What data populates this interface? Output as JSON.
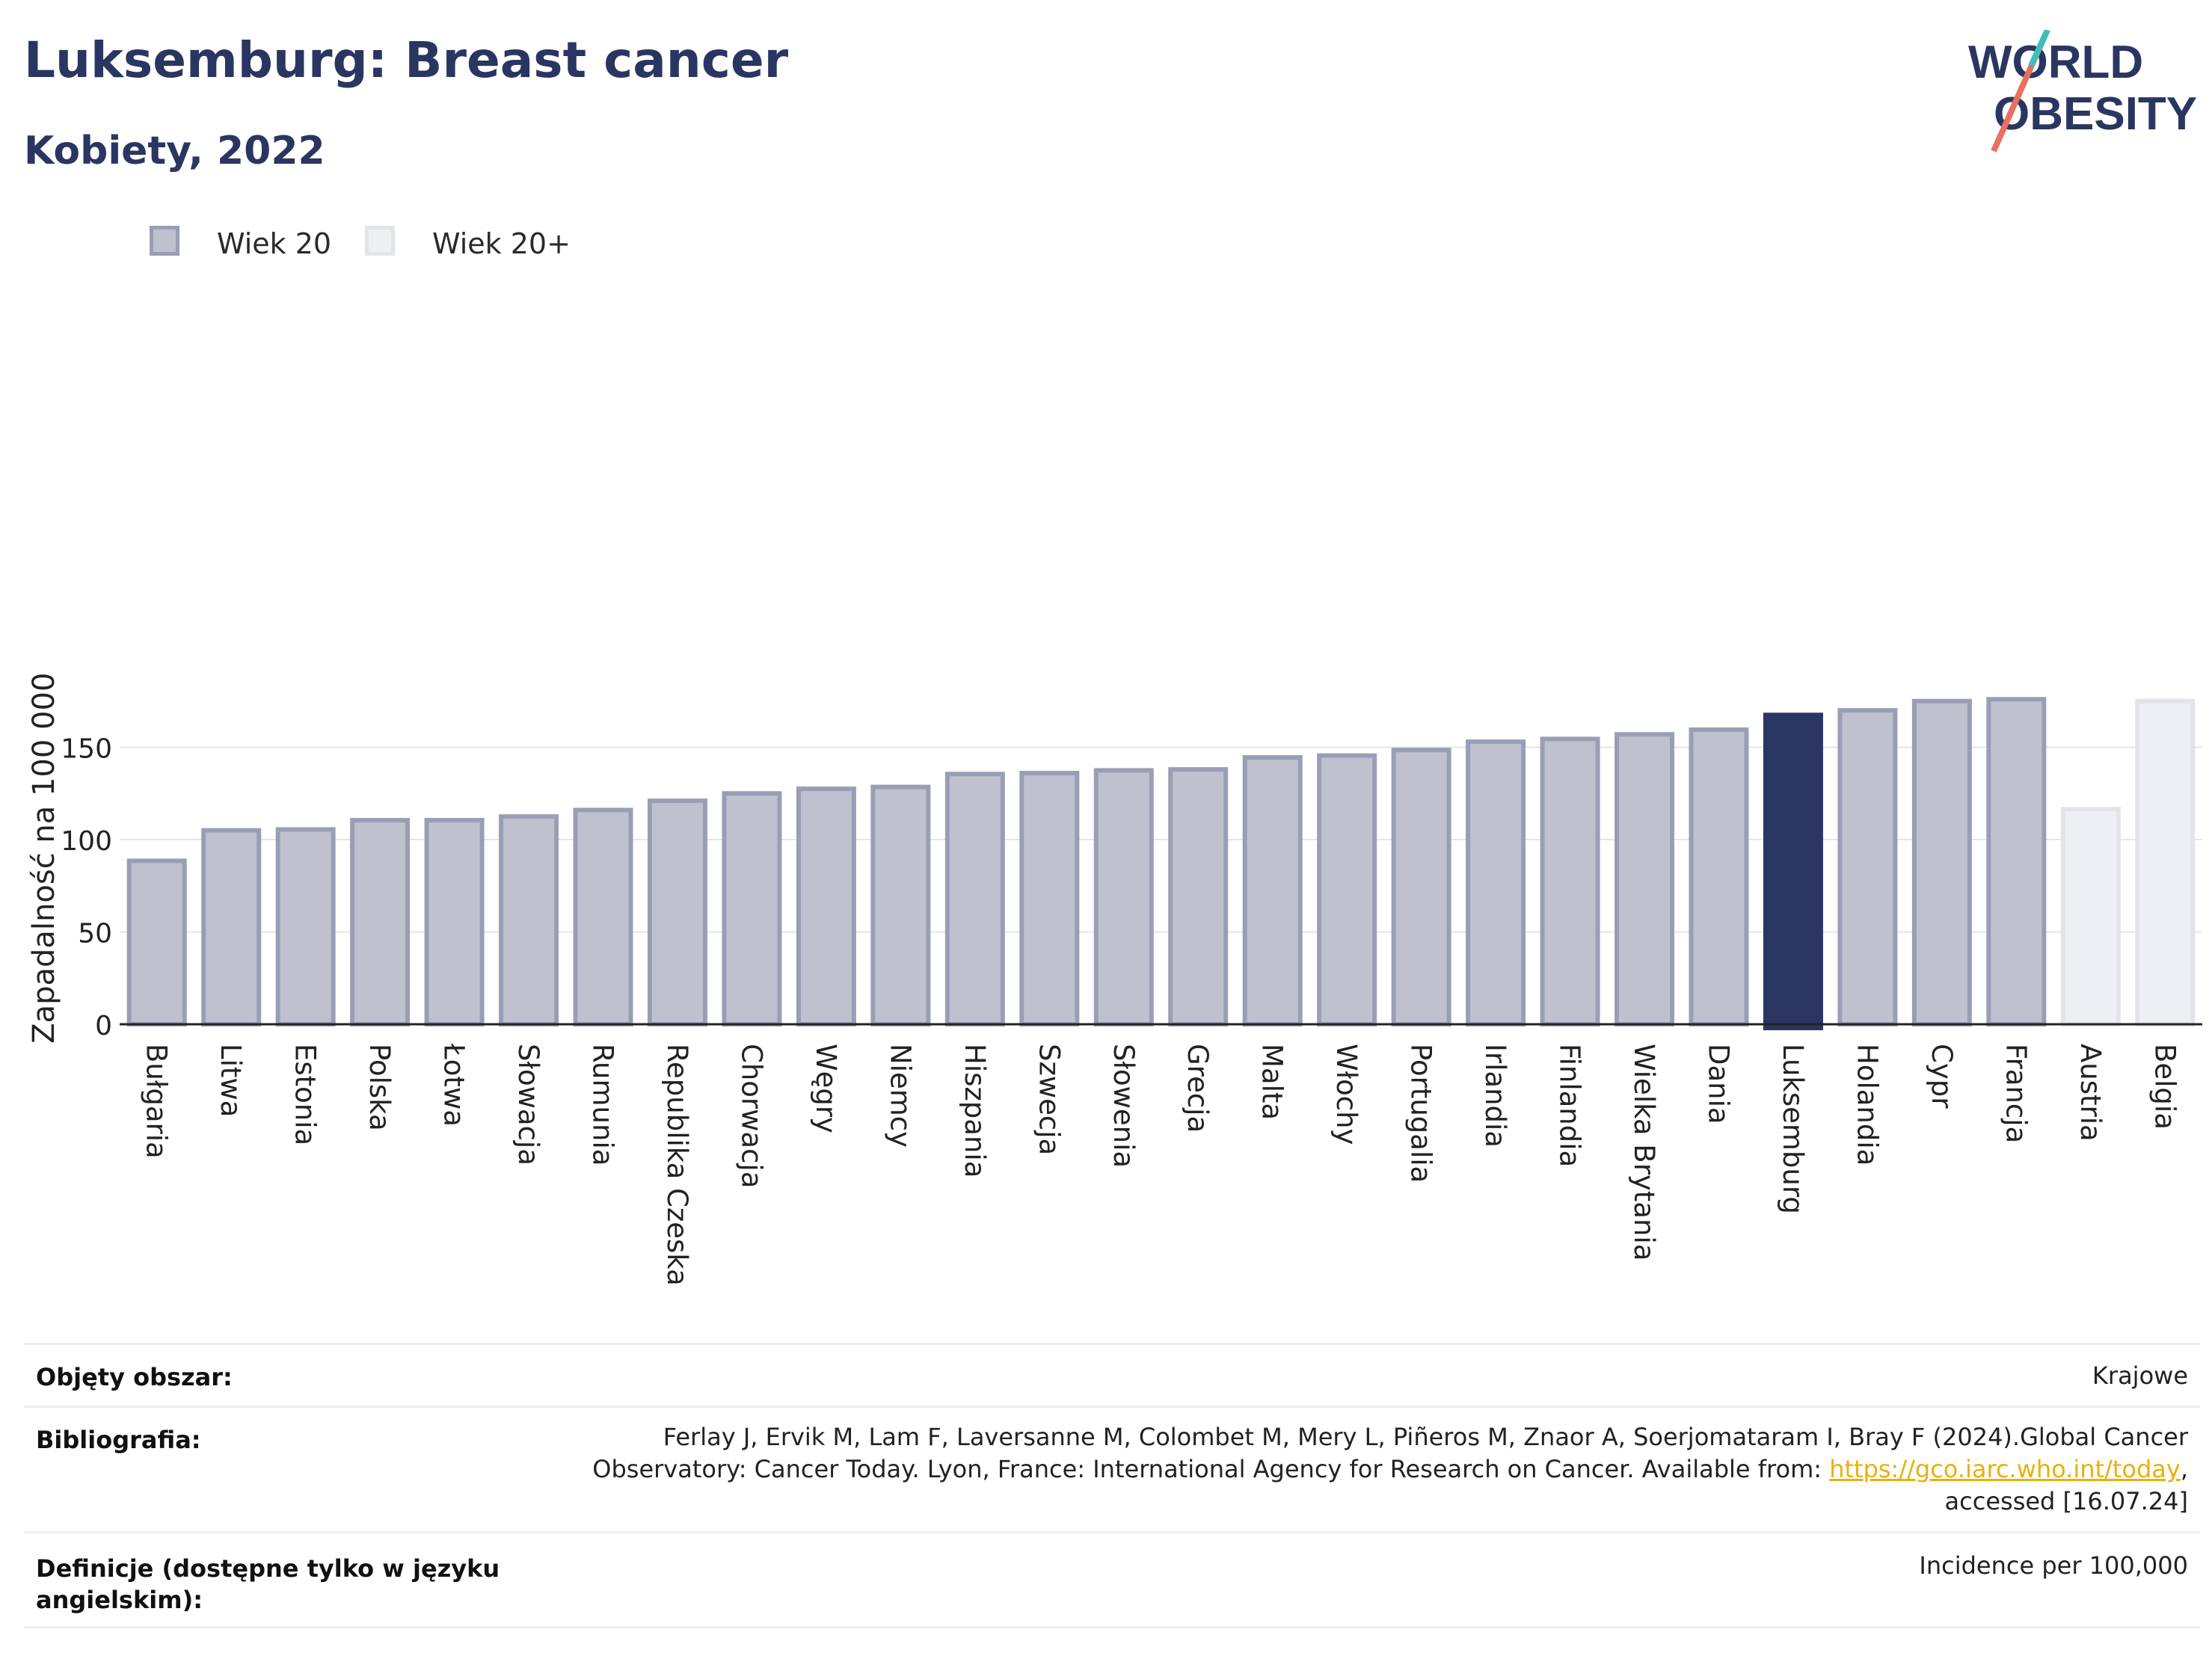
{
  "header": {
    "title": "Luksemburg: Breast cancer",
    "subtitle": "Kobiety, 2022"
  },
  "logo": {
    "line1": "WORLD",
    "line2": "OBESITY"
  },
  "legend": [
    {
      "label": "Wiek 20",
      "color": "#bfc2ce",
      "border": "#9a9eb5"
    },
    {
      "label": "Wiek 20+",
      "color": "#eeeff3",
      "border": "#e2e4ea"
    }
  ],
  "colors": {
    "highlight": "#2a3661",
    "axis": "#222222",
    "grid": "#e6e6e6"
  },
  "chart_data": {
    "type": "bar",
    "ylabel": "Zapadalność na 100 000",
    "ylim": [
      0,
      180
    ],
    "yticks": [
      0,
      50,
      100,
      150
    ],
    "grid": true,
    "legend_position": "top-left",
    "categories": [
      "Bułgaria",
      "Litwa",
      "Estonia",
      "Polska",
      "Łotwa",
      "Słowacja",
      "Rumunia",
      "Republika Czeska",
      "Chorwacja",
      "Węgry",
      "Niemcy",
      "Hiszpania",
      "Szwecja",
      "Słowenia",
      "Grecja",
      "Malta",
      "Włochy",
      "Portugalia",
      "Irlandia",
      "Finlandia",
      "Wielka Brytania",
      "Dania",
      "Luksemburg",
      "Holandia",
      "Cypr",
      "Francja",
      "Austria",
      "Belgia"
    ],
    "values": [
      88.5,
      105,
      105.5,
      110.5,
      110.5,
      112.5,
      116,
      121,
      125,
      127.5,
      128.5,
      135.5,
      136,
      137.5,
      138,
      144.5,
      145.5,
      148.5,
      153,
      154.5,
      157,
      159.5,
      167.5,
      170,
      175,
      176,
      116.5,
      175
    ],
    "groups": [
      "Wiek 20",
      "Wiek 20",
      "Wiek 20",
      "Wiek 20",
      "Wiek 20",
      "Wiek 20",
      "Wiek 20",
      "Wiek 20",
      "Wiek 20",
      "Wiek 20",
      "Wiek 20",
      "Wiek 20",
      "Wiek 20",
      "Wiek 20",
      "Wiek 20",
      "Wiek 20",
      "Wiek 20",
      "Wiek 20",
      "Wiek 20",
      "Wiek 20",
      "Wiek 20",
      "Wiek 20",
      "Wiek 20",
      "Wiek 20",
      "Wiek 20",
      "Wiek 20",
      "Wiek 20+",
      "Wiek 20+"
    ],
    "highlight": "Luksemburg"
  },
  "meta": {
    "area_label": "Objęty obszar:",
    "area_value": "Krajowe",
    "bib_label": "Bibliografia:",
    "bib_line1": "Ferlay J, Ervik M, Lam F, Laversanne M, Colombet M, Mery L, Piñeros M, Znaor A, Soerjomataram I, Bray F (2024).Global Cancer",
    "bib_line2_pre": "Observatory: Cancer Today. Lyon, France: International Agency for Research on Cancer. Available from: ",
    "bib_link": "https://gco.iarc.who.int/today",
    "bib_line2_post": ",",
    "bib_line3": "accessed [16.07.24]",
    "def_label_1": "Definicje (dostępne tylko w języku",
    "def_label_2": "angielskim):",
    "def_value": "Incidence per 100,000"
  }
}
